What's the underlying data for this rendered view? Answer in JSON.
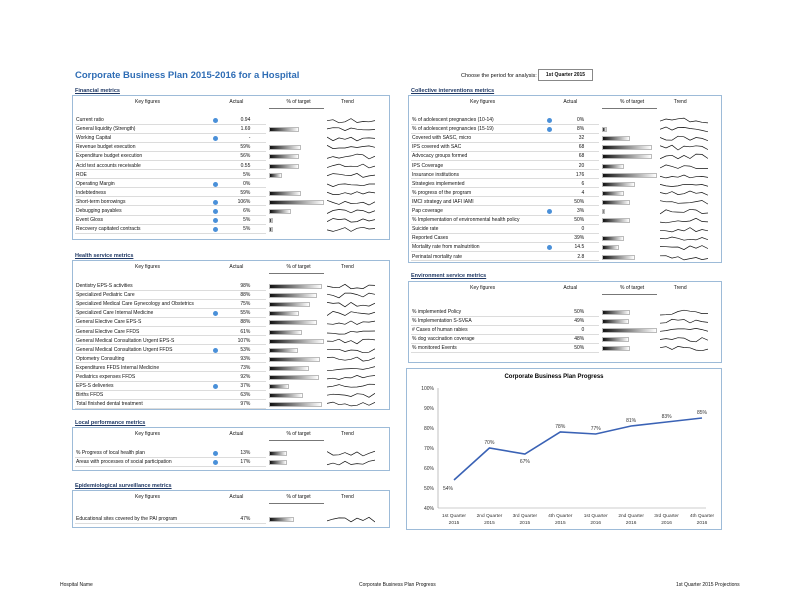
{
  "title": "Corporate Business Plan 2015-2016 for a Hospital",
  "period": {
    "label": "Choose the period for analysis:",
    "value": "1st Quarter 2015"
  },
  "column_headers": {
    "key": "Key figures",
    "actual": "Actual",
    "pct": "% of target",
    "trend": "Trend"
  },
  "sections": {
    "financial": {
      "title": "Financial metrics",
      "rows": [
        {
          "label": "Current ratio",
          "actual": "0.94",
          "dot": true,
          "pct": 0
        },
        {
          "label": "General liquidity (Strength)",
          "actual": "1.69",
          "dot": false,
          "pct": 0.55
        },
        {
          "label": "Working Capital",
          "actual": "-",
          "dot": true,
          "pct": 0
        },
        {
          "label": "Revenue budget execution",
          "actual": "59%",
          "dot": false,
          "pct": 0.59
        },
        {
          "label": "Expenditure budget execution",
          "actual": "56%",
          "dot": false,
          "pct": 0.56
        },
        {
          "label": "Acid test accounts receivable",
          "actual": "0.55",
          "dot": false,
          "pct": 0.55
        },
        {
          "label": "ROE",
          "actual": "5%",
          "dot": false,
          "pct": 0.25
        },
        {
          "label": "Operating Margin",
          "actual": "0%",
          "dot": true,
          "pct": 0
        },
        {
          "label": "Indebtedness",
          "actual": "59%",
          "dot": false,
          "pct": 0.59
        },
        {
          "label": "Short-term borrowings",
          "actual": "106%",
          "dot": true,
          "pct": 1.0
        },
        {
          "label": "Debugging payables",
          "actual": "6%",
          "dot": true,
          "pct": 0.4
        },
        {
          "label": "Event Gloss",
          "actual": "5%",
          "dot": true,
          "pct": 0.08
        },
        {
          "label": "Recovery capitated contracts",
          "actual": "5%",
          "dot": true,
          "pct": 0.08
        }
      ]
    },
    "health": {
      "title": "Health service metrics",
      "rows": [
        {
          "label": "Dentistry EPS-S activities",
          "actual": "98%",
          "dot": false,
          "pct": 0.98
        },
        {
          "label": "Specialized Pediatric Care",
          "actual": "88%",
          "dot": false,
          "pct": 0.88
        },
        {
          "label": "Specialized Medical Care Gynecology and Obstetrics",
          "actual": "75%",
          "dot": false,
          "pct": 0.75
        },
        {
          "label": "Specialized Care Internal Medicine",
          "actual": "55%",
          "dot": true,
          "pct": 0.55
        },
        {
          "label": "General Elective Care EPS-S",
          "actual": "88%",
          "dot": false,
          "pct": 0.88
        },
        {
          "label": "General Elective Care FFDS",
          "actual": "61%",
          "dot": false,
          "pct": 0.61
        },
        {
          "label": "General Medical Consultation Urgent EPS-S",
          "actual": "107%",
          "dot": false,
          "pct": 1.0
        },
        {
          "label": "General Medical Consultation Urgent FFDS",
          "actual": "53%",
          "dot": true,
          "pct": 0.53
        },
        {
          "label": "Optometry Consulting",
          "actual": "93%",
          "dot": false,
          "pct": 0.93
        },
        {
          "label": "Expenditures FFDS Internal Medicine",
          "actual": "73%",
          "dot": false,
          "pct": 0.73
        },
        {
          "label": "Pediatrics expenses FFDS",
          "actual": "92%",
          "dot": false,
          "pct": 0.92
        },
        {
          "label": "EPS-S deliveries",
          "actual": "37%",
          "dot": true,
          "pct": 0.37
        },
        {
          "label": "Births FFDS",
          "actual": "63%",
          "dot": false,
          "pct": 0.63
        },
        {
          "label": "Total finished dental treatment",
          "actual": "97%",
          "dot": false,
          "pct": 0.97
        }
      ]
    },
    "local": {
      "title": "Local performance metrics",
      "rows": [
        {
          "label": "% Progress of local health plan",
          "actual": "13%",
          "dot": true,
          "pct": 0.33
        },
        {
          "label": "Areas with processes of social participation",
          "actual": "17%",
          "dot": true,
          "pct": 0.33
        }
      ]
    },
    "epi": {
      "title": "Epidemiological surveillance metrics",
      "rows": [
        {
          "label": "Educational sites covered by the PAI program",
          "actual": "47%",
          "dot": false,
          "pct": 0.47
        }
      ]
    },
    "collective": {
      "title": "Collective interventions metrics",
      "rows": [
        {
          "label": "% of adolescent pregnancies (10-14)",
          "actual": "0%",
          "dot": true,
          "pct": 0
        },
        {
          "label": "% of adolescent pregnancies (15-19)",
          "actual": "8%",
          "dot": true,
          "pct": 0.08
        },
        {
          "label": "Covered with SASC, micro",
          "actual": "32",
          "dot": false,
          "pct": 0.5
        },
        {
          "label": "IPS covered with SAC",
          "actual": "68",
          "dot": false,
          "pct": 0.9
        },
        {
          "label": "Advocacy groups formed",
          "actual": "68",
          "dot": false,
          "pct": 0.9
        },
        {
          "label": "IPS Coverage",
          "actual": "20",
          "dot": false,
          "pct": 0.4
        },
        {
          "label": "Insurance institutions",
          "actual": "176",
          "dot": false,
          "pct": 1.0
        },
        {
          "label": "Strategies implemented",
          "actual": "6",
          "dot": false,
          "pct": 0.6
        },
        {
          "label": "% progress of the program",
          "actual": "4",
          "dot": false,
          "pct": 0.4
        },
        {
          "label": "IMCI strategy and IAFI IAMI",
          "actual": "50%",
          "dot": false,
          "pct": 0.5
        },
        {
          "label": "Pap coverage",
          "actual": "3%",
          "dot": true,
          "pct": 0.05
        },
        {
          "label": "% Implementation of environmental health policy",
          "actual": "50%",
          "dot": false,
          "pct": 0.5
        },
        {
          "label": "Suicide rate",
          "actual": "0",
          "dot": false,
          "pct": 0
        },
        {
          "label": "Reported Cases",
          "actual": "39%",
          "dot": false,
          "pct": 0.39
        },
        {
          "label": "Mortality rate from malnutrition",
          "actual": "14.5",
          "dot": true,
          "pct": 0.3
        },
        {
          "label": "Perinatal mortality rate",
          "actual": "2.8",
          "dot": false,
          "pct": 0.6
        }
      ]
    },
    "environment": {
      "title": "Environment service metrics",
      "rows": [
        {
          "label": "% implemented Policy",
          "actual": "50%",
          "dot": false,
          "pct": 0.5
        },
        {
          "label": "% Implementation S-SVEA",
          "actual": "49%",
          "dot": false,
          "pct": 0.49
        },
        {
          "label": "# Cases of human rabies",
          "actual": "0",
          "dot": false,
          "pct": 1.0
        },
        {
          "label": "% dog vaccination coverage",
          "actual": "48%",
          "dot": false,
          "pct": 0.48
        },
        {
          "label": "% monitored Events",
          "actual": "50%",
          "dot": false,
          "pct": 0.5
        }
      ]
    }
  },
  "chart_data": {
    "type": "line",
    "title": "Corporate Business Plan Progress",
    "categories": [
      "1st Quarter 2015",
      "2nd Quarter 2015",
      "3rd Quarter 2015",
      "4th Quarter 2015",
      "1st Quarter 2016",
      "2nd Quarter 2016",
      "3rd Quarter 2016",
      "4th Quarter 2016"
    ],
    "values": [
      54,
      70,
      67,
      78,
      77,
      81,
      83,
      85
    ],
    "data_labels": [
      "54%",
      "70%",
      "67%",
      "78%",
      "77%",
      "81%",
      "83%",
      "85%"
    ],
    "ylim": [
      40,
      100
    ],
    "y_ticks": [
      "40%",
      "50%",
      "60%",
      "70%",
      "80%",
      "90%",
      "100%"
    ],
    "line_color": "#3a62b5",
    "grid": false
  },
  "footer": {
    "left": "Hospital Name",
    "center": "Corporate Business Plan Progress",
    "right": "1st Quarter 2015 Projections"
  }
}
